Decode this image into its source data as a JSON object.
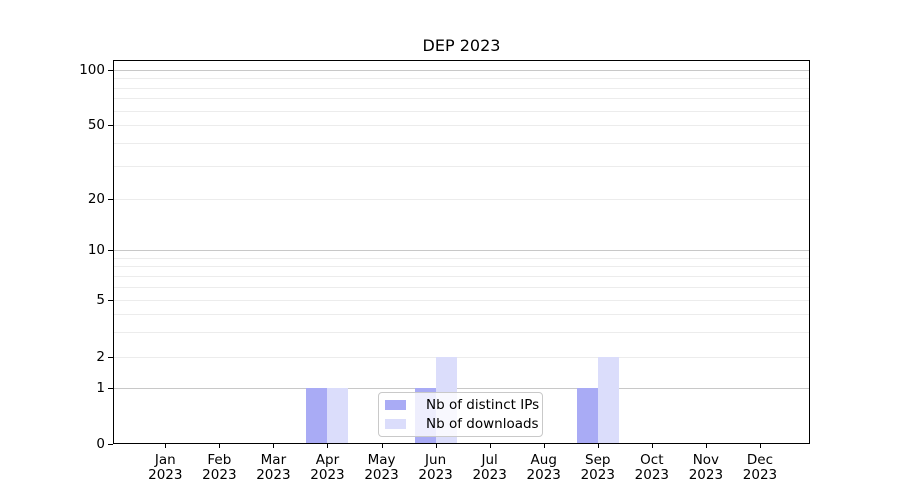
{
  "chart_data": {
    "type": "bar",
    "title": "DEP 2023",
    "x_ticks": [
      {
        "month": "Jan",
        "year": "2023"
      },
      {
        "month": "Feb",
        "year": "2023"
      },
      {
        "month": "Mar",
        "year": "2023"
      },
      {
        "month": "Apr",
        "year": "2023"
      },
      {
        "month": "May",
        "year": "2023"
      },
      {
        "month": "Jun",
        "year": "2023"
      },
      {
        "month": "Jul",
        "year": "2023"
      },
      {
        "month": "Aug",
        "year": "2023"
      },
      {
        "month": "Sep",
        "year": "2023"
      },
      {
        "month": "Oct",
        "year": "2023"
      },
      {
        "month": "Nov",
        "year": "2023"
      },
      {
        "month": "Dec",
        "year": "2023"
      }
    ],
    "y_ticks": [
      0,
      1,
      2,
      5,
      10,
      20,
      50,
      100
    ],
    "y_scale": "symlog",
    "ylim": [
      0,
      100
    ],
    "grid": "on",
    "legend_position": "lower center",
    "series": [
      {
        "name": "Nb of distinct IPs",
        "color": "#a9abf5",
        "values": [
          0,
          0,
          0,
          1,
          0,
          1,
          0,
          0,
          1,
          0,
          0,
          0
        ]
      },
      {
        "name": "Nb of downloads",
        "color": "#dbddfb",
        "values": [
          0,
          0,
          0,
          1,
          0,
          2,
          0,
          0,
          2,
          0,
          0,
          0
        ]
      }
    ]
  }
}
